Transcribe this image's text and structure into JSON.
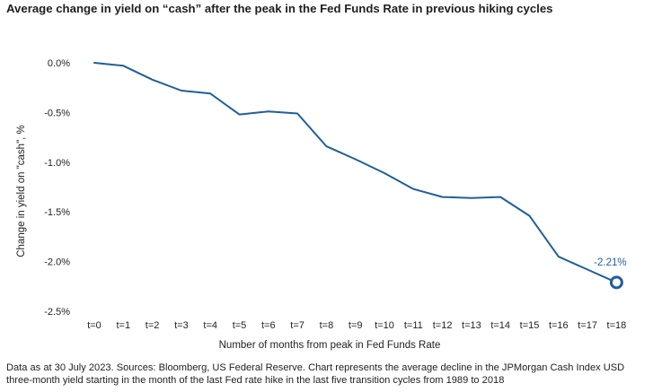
{
  "title": "Average change in yield on “cash” after the peak in the Fed Funds Rate in previous hiking cycles",
  "footnote": "Data as at 30 July 2023. Sources: Bloomberg, US Federal Reserve. Chart represents the average decline in the JPMorgan Cash Index USD three-month yield starting in the month of the last Fed rate hike in the last five transition cycles from 1989 to 2018",
  "colors": {
    "line": "#1f5f9a",
    "marker": "#1f5f9a",
    "label": "#1f5f9a"
  },
  "chart_data": {
    "type": "line",
    "title": "Average change in yield on “cash” after the peak in the Fed Funds Rate in previous hiking cycles",
    "xlabel": "Number of months from peak in Fed Funds Rate",
    "ylabel": "Change in yield on \"cash\", %",
    "categories": [
      "t=0",
      "t=1",
      "t=2",
      "t=3",
      "t=4",
      "t=5",
      "t=6",
      "t=7",
      "t=8",
      "t=9",
      "t=10",
      "t=11",
      "t=12",
      "t=13",
      "t=14",
      "t=15",
      "t=16",
      "t=17",
      "t=18"
    ],
    "y_ticks": [
      0.0,
      -0.5,
      -1.0,
      -1.5,
      -2.0,
      -2.5
    ],
    "y_tick_labels": [
      "0.0%",
      "-0.5%",
      "-1.0%",
      "-1.5%",
      "-2.0%",
      "-2.5%"
    ],
    "ylim": [
      -2.5,
      0.0
    ],
    "grid": false,
    "series": [
      {
        "values": [
          0.0,
          -0.03,
          -0.17,
          -0.28,
          -0.31,
          -0.52,
          -0.49,
          -0.51,
          -0.84,
          -0.97,
          -1.11,
          -1.27,
          -1.35,
          -1.36,
          -1.35,
          -1.54,
          -1.95,
          -2.08,
          -2.21
        ]
      }
    ],
    "annotations": [
      {
        "x": "t=18",
        "y": -2.21,
        "text": "-2.21%",
        "marker": "open-circle"
      }
    ]
  }
}
